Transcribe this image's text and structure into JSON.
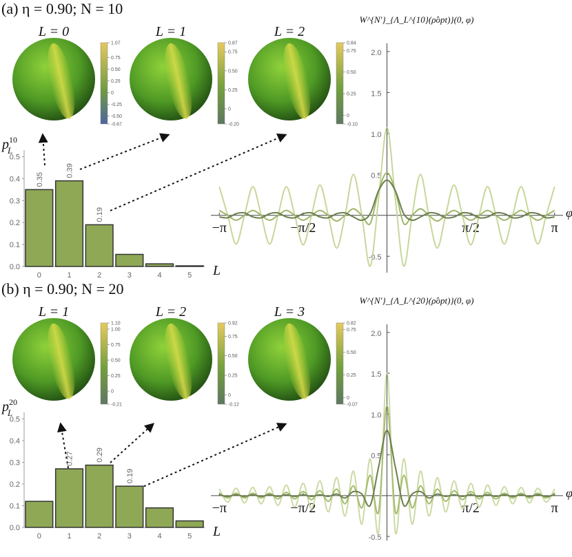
{
  "panels": [
    {
      "label": "(a) η = 0.90; N = 10",
      "spheres": [
        {
          "title": "L = 0",
          "clim": [
            -0.67,
            1.07
          ],
          "cticks": [
            -0.67,
            {
              "value": -0.5,
              "label": "-0.50"
            },
            -0.25,
            0,
            0.25,
            {
              "value": 0.5,
              "label": "0.50"
            },
            0.75,
            1.07
          ]
        },
        {
          "title": "L = 1",
          "clim": [
            -0.2,
            0.87
          ],
          "cticks": [
            {
              "value": -0.2,
              "label": "-0.20"
            },
            0,
            0.25,
            {
              "value": 0.5,
              "label": "0.50"
            },
            0.75,
            0.87
          ]
        },
        {
          "title": "L = 2",
          "clim": [
            -0.1,
            0.84
          ],
          "cticks": [
            {
              "value": -0.1,
              "label": "-0.10"
            },
            0,
            0.25,
            {
              "value": 0.5,
              "label": "0.50"
            },
            0.75,
            0.84
          ]
        }
      ]
    },
    {
      "label": "(b) η = 0.90; N = 20",
      "spheres": [
        {
          "title": "L = 1",
          "clim": [
            -0.21,
            1.1
          ],
          "cticks": [
            -0.21,
            0,
            0.25,
            {
              "value": 0.5,
              "label": "0.50"
            },
            0.75,
            {
              "value": 1,
              "label": "1.00"
            },
            {
              "value": 1.1,
              "label": "1.10"
            }
          ]
        },
        {
          "title": "L = 2",
          "clim": [
            -0.12,
            0.92
          ],
          "cticks": [
            -0.12,
            0,
            0.25,
            {
              "value": 0.5,
              "label": "0.50"
            },
            0.75,
            0.92
          ]
        },
        {
          "title": "L = 3",
          "clim": [
            -0.07,
            0.82
          ],
          "cticks": [
            -0.07,
            0,
            0.25,
            {
              "value": 0.5,
              "label": "0.50"
            },
            0.75,
            0.82
          ]
        }
      ]
    }
  ],
  "chart_data": [
    {
      "type": "bar",
      "y_label": "p",
      "y_label_subscript": "L",
      "y_label_superscript": "10",
      "x_label": "L",
      "categories": [
        "0",
        "1",
        "2",
        "3",
        "4",
        "5"
      ],
      "values": [
        0.35,
        0.39,
        0.19,
        0.055,
        0.012,
        0.003
      ],
      "value_labels": [
        "0.35",
        "0.39",
        "0.19",
        null,
        null,
        null
      ],
      "color": "#8fa856",
      "ylim": [
        0,
        0.53
      ],
      "yticks": [
        {
          "value": 0,
          "label": "0.0"
        },
        0.1,
        0.2,
        0.3,
        0.4,
        0.5
      ]
    },
    {
      "type": "line",
      "title": "W^{N′}_{Λ_L^{10}(ρ̂opt)}(0, φ)",
      "x_label": "φ",
      "x": [
        -3.1416,
        -2.9845,
        -2.8274,
        -2.6704,
        -2.5133,
        -2.3562,
        -2.1991,
        -2.042,
        -1.885,
        -1.7279,
        -1.5708,
        -1.4137,
        -1.2566,
        -1.0996,
        -0.9425,
        -0.7854,
        -0.6283,
        -0.4712,
        -0.3142,
        -0.1571,
        0,
        0.1571,
        0.3142,
        0.4712,
        0.6283,
        0.7854,
        0.9425,
        1.0996,
        1.2566,
        1.4137,
        1.5708,
        1.7279,
        1.885,
        2.042,
        2.1991,
        2.3562,
        2.5133,
        2.6704,
        2.8274,
        2.9845,
        3.1416
      ],
      "series": [
        {
          "color": "#c6d79a",
          "values": [
            0.35,
            0,
            -0.35,
            0,
            0.35,
            0,
            -0.35,
            0,
            0.35,
            0,
            -0.36,
            0,
            0.37,
            0,
            -0.4,
            0,
            0.5,
            0,
            -0.62,
            0.2,
            1.07,
            0.2,
            -0.62,
            0,
            0.5,
            0,
            -0.4,
            0,
            0.37,
            0,
            -0.36,
            0,
            0.35,
            0,
            -0.35,
            0,
            0.35,
            0,
            -0.35,
            0,
            0.35
          ]
        },
        {
          "color": "#9fb56a",
          "values": [
            0.06,
            0,
            -0.06,
            0,
            0.06,
            0,
            -0.06,
            0,
            0.06,
            0,
            -0.06,
            0,
            0.06,
            0,
            -0.07,
            0,
            0.08,
            0,
            -0.1,
            0.3,
            0.52,
            0.3,
            -0.1,
            0,
            0.08,
            0,
            -0.07,
            0,
            0.06,
            0,
            -0.06,
            0,
            0.06,
            0,
            -0.06,
            0,
            0.06,
            0,
            -0.06,
            0,
            0.06
          ]
        },
        {
          "color": "#6b7f4e",
          "values": [
            -0.02,
            -0.03,
            0.02,
            0.03,
            -0.02,
            -0.03,
            0.02,
            0.03,
            -0.02,
            -0.03,
            0.02,
            0.03,
            -0.02,
            -0.03,
            0.02,
            0.03,
            -0.02,
            -0.06,
            0.02,
            0.3,
            0.43,
            0.3,
            0.02,
            -0.06,
            -0.02,
            0.03,
            0.02,
            -0.03,
            -0.02,
            0.03,
            0.02,
            -0.03,
            -0.02,
            0.03,
            0.02,
            -0.03,
            -0.02,
            0.03,
            0.02,
            -0.03,
            -0.02
          ]
        }
      ],
      "xlim": [
        -3.3,
        3.3
      ],
      "ylim": [
        -0.7,
        2.1
      ],
      "xticks": [
        {
          "value": -3.1416,
          "label": "−π"
        },
        {
          "value": -1.5708,
          "label": "−π/2"
        },
        {
          "value": 1.5708,
          "label": "π/2"
        },
        {
          "value": 3.1416,
          "label": "π"
        }
      ],
      "yticks": [
        -0.5,
        0.5,
        {
          "value": 1,
          "label": "1.0"
        },
        1.5,
        {
          "value": 2,
          "label": "2.0"
        }
      ]
    },
    {
      "type": "bar",
      "y_label": "p",
      "y_label_subscript": "L",
      "y_label_superscript": "20",
      "x_label": "L",
      "categories": [
        "0",
        "1",
        "2",
        "3",
        "4",
        "5"
      ],
      "values": [
        0.12,
        0.27,
        0.287,
        0.19,
        0.09,
        0.03
      ],
      "value_labels": [
        null,
        "0.27",
        "0.29",
        "0.19",
        null,
        null
      ],
      "color": "#8fa856",
      "ylim": [
        0,
        0.53
      ],
      "yticks": [
        {
          "value": 0,
          "label": "0.0"
        },
        0.1,
        0.2,
        0.3,
        0.4,
        0.5
      ]
    },
    {
      "type": "line",
      "title": "W^{N′}_{Λ_L^{20}(ρ̂opt)}(0, φ)",
      "x_label": "φ",
      "x": [
        -3.1416,
        -2.9845,
        -2.8274,
        -2.6704,
        -2.5133,
        -2.3562,
        -2.1991,
        -2.042,
        -1.885,
        -1.7279,
        -1.5708,
        -1.4137,
        -1.2566,
        -1.0996,
        -0.9425,
        -0.7854,
        -0.6283,
        -0.4712,
        -0.3142,
        -0.1571,
        0,
        0.1571,
        0.3142,
        0.4712,
        0.6283,
        0.7854,
        0.9425,
        1.0996,
        1.2566,
        1.4137,
        1.5708,
        1.7279,
        1.885,
        2.042,
        2.1991,
        2.3562,
        2.5133,
        2.6704,
        2.8274,
        2.9845,
        3.1416
      ],
      "series": [
        {
          "color": "#cbdaa3",
          "values": [
            0.08,
            -0.08,
            0.09,
            -0.09,
            0.1,
            -0.1,
            0.11,
            -0.12,
            0.13,
            -0.14,
            0.15,
            -0.16,
            0.18,
            -0.2,
            0.22,
            -0.25,
            0.3,
            -0.35,
            0.45,
            -0.45,
            1.5,
            -0.45,
            0.45,
            -0.35,
            0.3,
            -0.25,
            0.22,
            -0.2,
            0.18,
            -0.16,
            0.15,
            -0.14,
            0.13,
            -0.12,
            0.11,
            -0.1,
            0.1,
            -0.09,
            0.09,
            -0.08,
            0.08
          ]
        },
        {
          "color": "#a6bb70",
          "values": [
            0.03,
            -0.03,
            0.03,
            -0.03,
            0.03,
            -0.03,
            0.03,
            -0.04,
            0.04,
            -0.04,
            0.05,
            -0.05,
            0.06,
            -0.07,
            0.08,
            -0.1,
            0.12,
            -0.15,
            0.25,
            -0.2,
            1.1,
            -0.2,
            0.25,
            -0.15,
            0.12,
            -0.1,
            0.08,
            -0.07,
            0.06,
            -0.05,
            0.05,
            -0.04,
            0.04,
            -0.04,
            0.03,
            -0.03,
            0.03,
            -0.03,
            0.03,
            -0.03,
            0.03
          ]
        },
        {
          "color": "#6b7f4e",
          "values": [
            0.01,
            -0.01,
            0.01,
            -0.01,
            0.01,
            -0.01,
            0.01,
            -0.01,
            0.01,
            -0.01,
            0.01,
            -0.01,
            0.01,
            -0.01,
            0.02,
            -0.03,
            0.05,
            0.02,
            -0.12,
            0.35,
            0.8,
            0.35,
            -0.12,
            0.02,
            0.05,
            -0.03,
            0.02,
            -0.01,
            0.01,
            -0.01,
            0.01,
            -0.01,
            0.01,
            -0.01,
            0.01,
            -0.01,
            0.01,
            -0.01,
            0.01,
            -0.01,
            0.01
          ]
        }
      ],
      "xlim": [
        -3.3,
        3.3
      ],
      "ylim": [
        -0.55,
        2.1
      ],
      "xticks": [
        {
          "value": -3.1416,
          "label": "−π"
        },
        {
          "value": -1.5708,
          "label": "−π/2"
        },
        {
          "value": 1.5708,
          "label": "π/2"
        },
        {
          "value": 3.1416,
          "label": "π"
        }
      ],
      "yticks": [
        -0.5,
        0.5,
        {
          "value": 1,
          "label": "1.0"
        },
        1.5,
        {
          "value": 2,
          "label": "2.0"
        }
      ]
    }
  ]
}
